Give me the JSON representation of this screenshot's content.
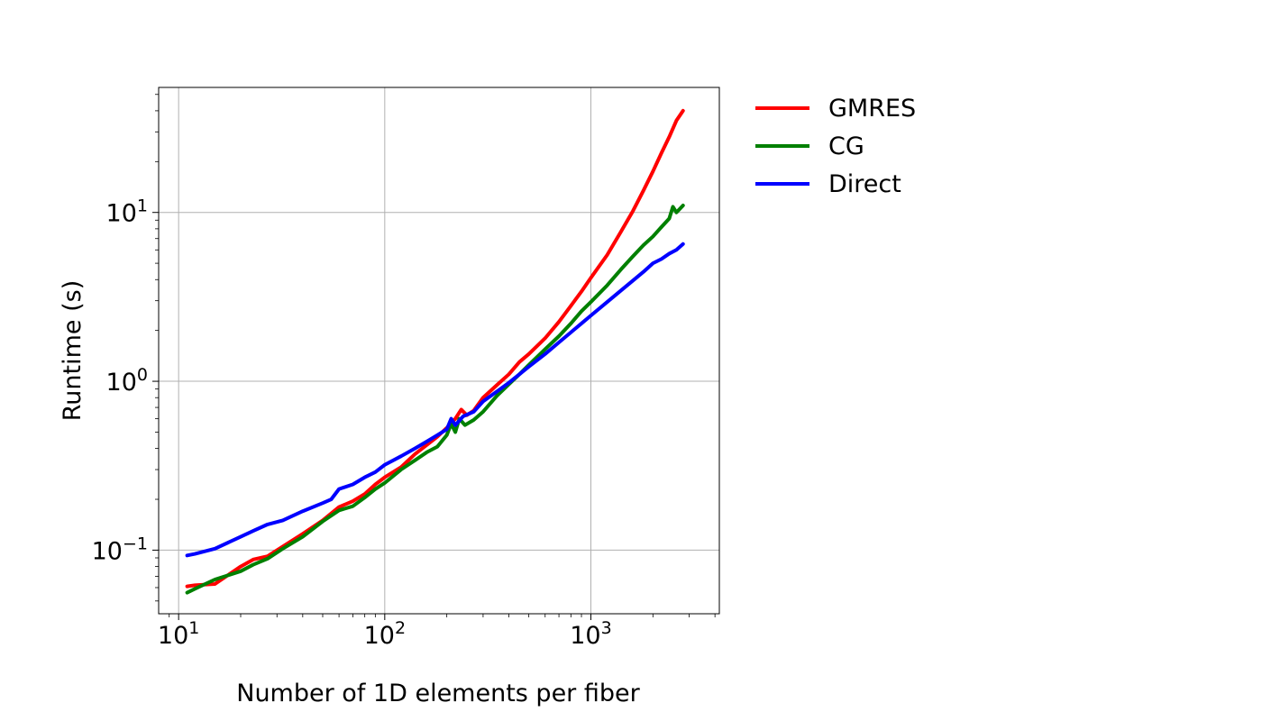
{
  "chart_data": {
    "type": "line",
    "xlabel": "Number of 1D elements per fiber",
    "ylabel": "Runtime (s)",
    "xscale": "log",
    "yscale": "log",
    "xlim": [
      8,
      4200
    ],
    "ylim": [
      0.042,
      55
    ],
    "grid": true,
    "legend_position": "outside-top-right",
    "x_ticks": [
      {
        "value": 10,
        "base": "10",
        "exp": "1"
      },
      {
        "value": 100,
        "base": "10",
        "exp": "2"
      },
      {
        "value": 1000,
        "base": "10",
        "exp": "3"
      }
    ],
    "y_ticks": [
      {
        "value": 0.1,
        "base": "10",
        "exp": "−1"
      },
      {
        "value": 1,
        "base": "10",
        "exp": "0"
      },
      {
        "value": 10,
        "base": "10",
        "exp": "1"
      }
    ],
    "series": [
      {
        "name": "GMRES",
        "color": "#ff0000",
        "points": [
          [
            11,
            0.061
          ],
          [
            12,
            0.062
          ],
          [
            15,
            0.063
          ],
          [
            20,
            0.08
          ],
          [
            23,
            0.088
          ],
          [
            27,
            0.092
          ],
          [
            32,
            0.105
          ],
          [
            40,
            0.125
          ],
          [
            50,
            0.15
          ],
          [
            60,
            0.18
          ],
          [
            70,
            0.195
          ],
          [
            80,
            0.215
          ],
          [
            90,
            0.245
          ],
          [
            100,
            0.27
          ],
          [
            120,
            0.31
          ],
          [
            140,
            0.37
          ],
          [
            160,
            0.42
          ],
          [
            180,
            0.47
          ],
          [
            200,
            0.53
          ],
          [
            220,
            0.6
          ],
          [
            235,
            0.68
          ],
          [
            250,
            0.63
          ],
          [
            270,
            0.67
          ],
          [
            300,
            0.8
          ],
          [
            350,
            0.95
          ],
          [
            400,
            1.1
          ],
          [
            450,
            1.3
          ],
          [
            500,
            1.45
          ],
          [
            600,
            1.8
          ],
          [
            700,
            2.25
          ],
          [
            800,
            2.8
          ],
          [
            900,
            3.4
          ],
          [
            1000,
            4.1
          ],
          [
            1200,
            5.6
          ],
          [
            1400,
            7.7
          ],
          [
            1600,
            10.2
          ],
          [
            1800,
            13.5
          ],
          [
            2000,
            17.5
          ],
          [
            2200,
            22.5
          ],
          [
            2400,
            28
          ],
          [
            2600,
            35
          ],
          [
            2800,
            40
          ]
        ]
      },
      {
        "name": "CG",
        "color": "#008000",
        "points": [
          [
            11,
            0.056
          ],
          [
            12,
            0.059
          ],
          [
            15,
            0.067
          ],
          [
            20,
            0.075
          ],
          [
            23,
            0.082
          ],
          [
            27,
            0.089
          ],
          [
            32,
            0.102
          ],
          [
            40,
            0.12
          ],
          [
            50,
            0.148
          ],
          [
            60,
            0.172
          ],
          [
            70,
            0.182
          ],
          [
            80,
            0.205
          ],
          [
            90,
            0.23
          ],
          [
            100,
            0.25
          ],
          [
            120,
            0.3
          ],
          [
            140,
            0.34
          ],
          [
            160,
            0.38
          ],
          [
            180,
            0.41
          ],
          [
            200,
            0.48
          ],
          [
            210,
            0.56
          ],
          [
            220,
            0.5
          ],
          [
            230,
            0.6
          ],
          [
            245,
            0.55
          ],
          [
            270,
            0.59
          ],
          [
            300,
            0.66
          ],
          [
            350,
            0.82
          ],
          [
            400,
            0.96
          ],
          [
            450,
            1.1
          ],
          [
            500,
            1.25
          ],
          [
            600,
            1.55
          ],
          [
            700,
            1.85
          ],
          [
            800,
            2.2
          ],
          [
            900,
            2.6
          ],
          [
            1000,
            2.95
          ],
          [
            1200,
            3.7
          ],
          [
            1400,
            4.6
          ],
          [
            1600,
            5.5
          ],
          [
            1800,
            6.4
          ],
          [
            2000,
            7.2
          ],
          [
            2200,
            8.2
          ],
          [
            2400,
            9.2
          ],
          [
            2500,
            10.8
          ],
          [
            2600,
            10.0
          ],
          [
            2800,
            11.0
          ]
        ]
      },
      {
        "name": "Direct",
        "color": "#0000ff",
        "points": [
          [
            11,
            0.093
          ],
          [
            12,
            0.095
          ],
          [
            15,
            0.102
          ],
          [
            20,
            0.12
          ],
          [
            23,
            0.13
          ],
          [
            27,
            0.142
          ],
          [
            32,
            0.15
          ],
          [
            40,
            0.17
          ],
          [
            50,
            0.19
          ],
          [
            55,
            0.2
          ],
          [
            60,
            0.23
          ],
          [
            70,
            0.245
          ],
          [
            80,
            0.27
          ],
          [
            90,
            0.29
          ],
          [
            100,
            0.32
          ],
          [
            120,
            0.36
          ],
          [
            140,
            0.4
          ],
          [
            160,
            0.44
          ],
          [
            180,
            0.48
          ],
          [
            200,
            0.52
          ],
          [
            210,
            0.6
          ],
          [
            220,
            0.55
          ],
          [
            240,
            0.62
          ],
          [
            270,
            0.66
          ],
          [
            300,
            0.76
          ],
          [
            350,
            0.87
          ],
          [
            400,
            0.98
          ],
          [
            450,
            1.1
          ],
          [
            500,
            1.22
          ],
          [
            600,
            1.45
          ],
          [
            700,
            1.7
          ],
          [
            800,
            1.95
          ],
          [
            900,
            2.2
          ],
          [
            1000,
            2.45
          ],
          [
            1200,
            2.95
          ],
          [
            1400,
            3.45
          ],
          [
            1600,
            3.95
          ],
          [
            1800,
            4.45
          ],
          [
            2000,
            5.0
          ],
          [
            2200,
            5.3
          ],
          [
            2400,
            5.7
          ],
          [
            2600,
            6.0
          ],
          [
            2800,
            6.5
          ]
        ]
      }
    ]
  }
}
